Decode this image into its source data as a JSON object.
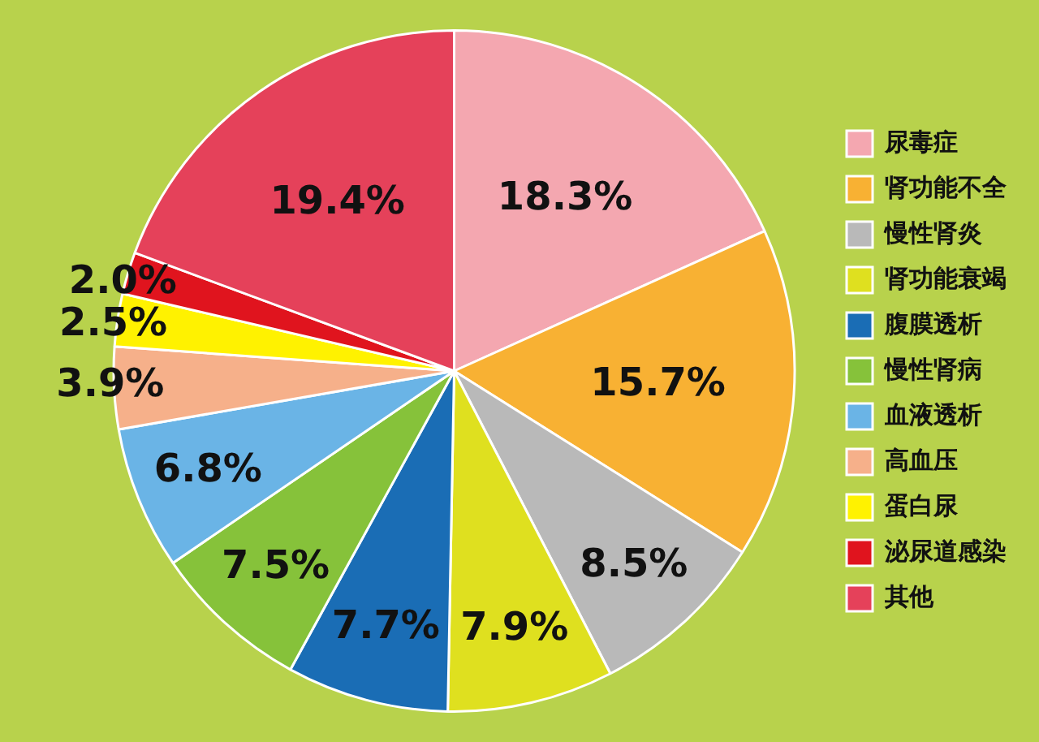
{
  "chart_data": {
    "type": "pie",
    "categories": [
      "尿毒症",
      "肾功能不全",
      "慢性肾炎",
      "肾功能衰竭",
      "腹膜透析",
      "慢性肾病",
      "血液透析",
      "高血压",
      "蛋白尿",
      "泌尿道感染",
      "其他"
    ],
    "values": [
      18.3,
      15.7,
      8.5,
      7.9,
      7.7,
      7.5,
      6.8,
      3.9,
      2.5,
      2.0,
      19.4
    ],
    "colors": [
      "#f4a7b0",
      "#f8b133",
      "#b9b9b9",
      "#dfe01f",
      "#1a6db5",
      "#86c23a",
      "#6ab4e6",
      "#f6b08a",
      "#fff200",
      "#e0141e",
      "#e5415a"
    ],
    "value_labels": [
      "18.3%",
      "15.7%",
      "8.5%",
      "7.9%",
      "7.7%",
      "7.5%",
      "6.8%",
      "3.9%",
      "2.5%",
      "2.0%",
      "19.4%"
    ],
    "legend": "right"
  }
}
